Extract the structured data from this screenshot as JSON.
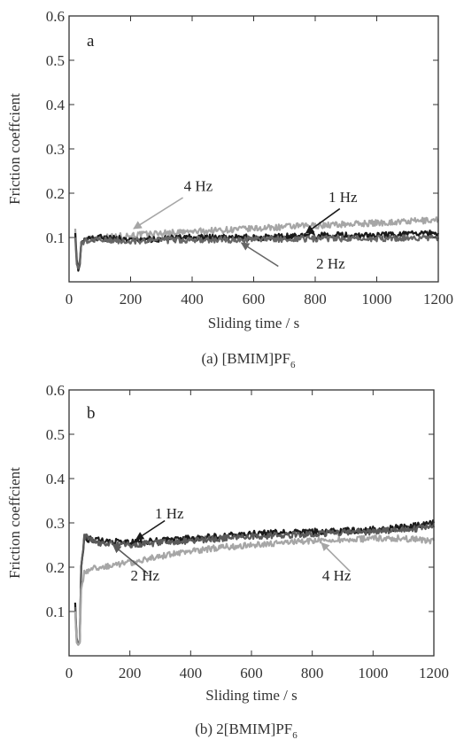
{
  "chart_data": [
    {
      "type": "line",
      "panel_label": "a",
      "caption": "(a) [BMIM]PF",
      "caption_sub": "6",
      "xlabel": "Sliding time / s",
      "ylabel": "Friction coeffcient",
      "xlim": [
        0,
        1200
      ],
      "ylim": [
        0,
        0.6
      ],
      "xticks": [
        0,
        200,
        400,
        600,
        800,
        1000,
        1200
      ],
      "yticks": [
        0.1,
        0.2,
        0.3,
        0.4,
        0.5,
        0.6
      ],
      "grid": false,
      "series": [
        {
          "name": "4 Hz",
          "color": "#a6a6a6",
          "x": [
            20,
            25,
            30,
            35,
            40,
            50,
            100,
            200,
            300,
            400,
            500,
            600,
            700,
            800,
            900,
            1000,
            1100,
            1200
          ],
          "y": [
            0.12,
            0.04,
            0.03,
            0.05,
            0.09,
            0.095,
            0.1,
            0.105,
            0.11,
            0.113,
            0.117,
            0.12,
            0.124,
            0.127,
            0.13,
            0.133,
            0.136,
            0.14
          ]
        },
        {
          "name": "1 Hz",
          "color": "#1a1a1a",
          "x": [
            20,
            25,
            30,
            35,
            40,
            50,
            100,
            200,
            300,
            400,
            500,
            600,
            700,
            800,
            900,
            1000,
            1100,
            1200
          ],
          "y": [
            0.11,
            0.05,
            0.025,
            0.04,
            0.09,
            0.095,
            0.1,
            0.095,
            0.097,
            0.1,
            0.1,
            0.1,
            0.102,
            0.104,
            0.105,
            0.105,
            0.107,
            0.11
          ]
        },
        {
          "name": "2 Hz",
          "color": "#666666",
          "x": [
            20,
            25,
            30,
            35,
            40,
            50,
            100,
            200,
            300,
            400,
            500,
            600,
            700,
            800,
            900,
            1000,
            1100,
            1200
          ],
          "y": [
            0.1,
            0.04,
            0.03,
            0.045,
            0.09,
            0.092,
            0.095,
            0.093,
            0.094,
            0.095,
            0.095,
            0.096,
            0.097,
            0.097,
            0.098,
            0.098,
            0.1,
            0.1
          ]
        }
      ],
      "annotations": [
        {
          "text": "4 Hz",
          "x": 420,
          "y": 0.205,
          "arrow_from": [
            370,
            0.19
          ],
          "arrow_to": [
            210,
            0.12
          ]
        },
        {
          "text": "1 Hz",
          "x": 890,
          "y": 0.18,
          "arrow_from": [
            880,
            0.165
          ],
          "arrow_to": [
            770,
            0.11
          ]
        },
        {
          "text": "2 Hz",
          "x": 850,
          "y": 0.03,
          "arrow_from": [
            680,
            0.035
          ],
          "arrow_to": [
            560,
            0.088
          ]
        }
      ]
    },
    {
      "type": "line",
      "panel_label": "b",
      "caption": "(b) 2[BMIM]PF",
      "caption_sub": "6",
      "xlabel": "Sliding time / s",
      "ylabel": "Friction coeffcient",
      "xlim": [
        0,
        1200
      ],
      "ylim": [
        0,
        0.6
      ],
      "xticks": [
        0,
        200,
        400,
        600,
        800,
        1000,
        1200
      ],
      "yticks": [
        0.1,
        0.2,
        0.3,
        0.4,
        0.5,
        0.6
      ],
      "grid": false,
      "series": [
        {
          "name": "1 Hz",
          "color": "#1a1a1a",
          "x": [
            20,
            25,
            30,
            35,
            40,
            50,
            100,
            200,
            300,
            400,
            500,
            600,
            700,
            800,
            900,
            1000,
            1100,
            1200
          ],
          "y": [
            0.12,
            0.04,
            0.025,
            0.03,
            0.2,
            0.265,
            0.26,
            0.255,
            0.26,
            0.265,
            0.27,
            0.275,
            0.278,
            0.28,
            0.282,
            0.285,
            0.29,
            0.3
          ]
        },
        {
          "name": "2 Hz",
          "color": "#5a5a5a",
          "x": [
            20,
            25,
            30,
            35,
            40,
            50,
            100,
            200,
            300,
            400,
            500,
            600,
            700,
            800,
            900,
            1000,
            1100,
            1200
          ],
          "y": [
            0.11,
            0.035,
            0.025,
            0.03,
            0.2,
            0.27,
            0.255,
            0.25,
            0.255,
            0.26,
            0.265,
            0.27,
            0.272,
            0.275,
            0.278,
            0.28,
            0.285,
            0.29
          ]
        },
        {
          "name": "4 Hz",
          "color": "#a6a6a6",
          "x": [
            20,
            25,
            30,
            35,
            40,
            50,
            100,
            200,
            300,
            400,
            500,
            600,
            700,
            800,
            900,
            1000,
            1100,
            1200
          ],
          "y": [
            0.1,
            0.03,
            0.025,
            0.03,
            0.15,
            0.19,
            0.2,
            0.21,
            0.225,
            0.235,
            0.245,
            0.25,
            0.255,
            0.26,
            0.262,
            0.265,
            0.265,
            0.26
          ]
        }
      ],
      "annotations": [
        {
          "text": "1 Hz",
          "x": 330,
          "y": 0.31,
          "arrow_from": [
            315,
            0.305
          ],
          "arrow_to": [
            220,
            0.262
          ]
        },
        {
          "text": "2 Hz",
          "x": 250,
          "y": 0.17,
          "arrow_from": [
            260,
            0.185
          ],
          "arrow_to": [
            145,
            0.25
          ]
        },
        {
          "text": "4 Hz",
          "x": 880,
          "y": 0.17,
          "arrow_from": [
            925,
            0.19
          ],
          "arrow_to": [
            830,
            0.255
          ]
        }
      ]
    }
  ]
}
